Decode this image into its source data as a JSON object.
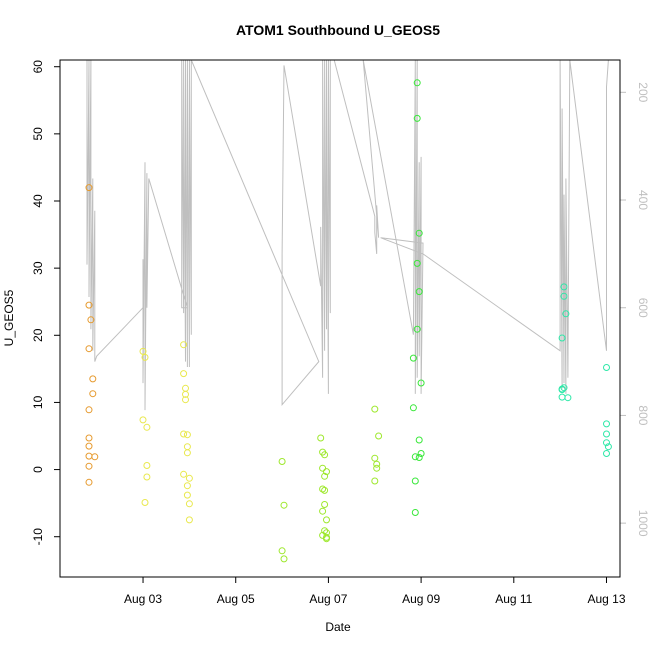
{
  "chart_data": {
    "type": "scatter",
    "title": "ATOM1 Southbound U_GEOS5",
    "xlabel": "Date",
    "ylabel": "U_GEOS5",
    "xlim": [
      "2016-08-01T05:00",
      "2016-08-13T07:00"
    ],
    "ylim": [
      -16,
      61
    ],
    "y2lim": [
      1100,
      140
    ],
    "y2_inverted": true,
    "x_ticks": [
      {
        "label": "Aug 03",
        "date": "2016-08-03"
      },
      {
        "label": "Aug 05",
        "date": "2016-08-05"
      },
      {
        "label": "Aug 07",
        "date": "2016-08-07"
      },
      {
        "label": "Aug 09",
        "date": "2016-08-09"
      },
      {
        "label": "Aug 11",
        "date": "2016-08-11"
      },
      {
        "label": "Aug 13",
        "date": "2016-08-13"
      }
    ],
    "y_ticks": [
      -10,
      0,
      10,
      20,
      30,
      40,
      50,
      60
    ],
    "y2_ticks": [
      200,
      400,
      600,
      800,
      1000
    ],
    "colors": {
      "grey_trace": "#bfbfbf",
      "y2_axis": "#bfbfbf",
      "points": [
        "#e69a2e",
        "#e9e84e",
        "#9ee82d",
        "#39e83a",
        "#2ee8a8"
      ]
    },
    "point_groups": [
      {
        "color": "#e69a2e",
        "points": [
          [
            "2016-08-01T20:00",
            42
          ],
          [
            "2016-08-01T20:00",
            24.5
          ],
          [
            "2016-08-01T21:00",
            22.3
          ],
          [
            "2016-08-01T20:00",
            18
          ],
          [
            "2016-08-01T22:00",
            13.5
          ],
          [
            "2016-08-01T22:00",
            11.3
          ],
          [
            "2016-08-01T20:00",
            8.9
          ],
          [
            "2016-08-01T20:00",
            4.7
          ],
          [
            "2016-08-01T20:00",
            3.5
          ],
          [
            "2016-08-01T20:00",
            2.0
          ],
          [
            "2016-08-01T23:00",
            1.9
          ],
          [
            "2016-08-01T20:00",
            0.5
          ],
          [
            "2016-08-01T20:00",
            -1.9
          ]
        ]
      },
      {
        "color": "#e9e84e",
        "points": [
          [
            "2016-08-03T00:00",
            17.6
          ],
          [
            "2016-08-03T01:00",
            16.7
          ],
          [
            "2016-08-03T00:00",
            7.4
          ],
          [
            "2016-08-03T02:00",
            6.3
          ],
          [
            "2016-08-03T02:00",
            0.6
          ],
          [
            "2016-08-03T02:00",
            -1.1
          ],
          [
            "2016-08-03T01:00",
            -4.9
          ],
          [
            "2016-08-03T21:00",
            18.6
          ],
          [
            "2016-08-03T21:00",
            14.3
          ],
          [
            "2016-08-03T22:00",
            12.1
          ],
          [
            "2016-08-03T22:00",
            11.2
          ],
          [
            "2016-08-03T22:00",
            10.4
          ],
          [
            "2016-08-03T21:00",
            5.3
          ],
          [
            "2016-08-03T23:00",
            5.2
          ],
          [
            "2016-08-03T23:00",
            3.4
          ],
          [
            "2016-08-03T23:00",
            2.5
          ],
          [
            "2016-08-03T21:00",
            -0.7
          ],
          [
            "2016-08-04T00:00",
            -1.3
          ],
          [
            "2016-08-03T23:00",
            -2.4
          ],
          [
            "2016-08-03T23:00",
            -3.8
          ],
          [
            "2016-08-04T00:00",
            -5.1
          ],
          [
            "2016-08-04T00:00",
            -7.5
          ]
        ]
      },
      {
        "color": "#9ee82d",
        "points": [
          [
            "2016-08-06T00:00",
            1.2
          ],
          [
            "2016-08-06T01:00",
            -5.3
          ],
          [
            "2016-08-06T00:00",
            -12.1
          ],
          [
            "2016-08-06T01:00",
            -13.3
          ],
          [
            "2016-08-06T20:00",
            4.7
          ],
          [
            "2016-08-06T21:00",
            2.6
          ],
          [
            "2016-08-06T22:00",
            2.2
          ],
          [
            "2016-08-06T21:00",
            0.2
          ],
          [
            "2016-08-06T23:00",
            -0.3
          ],
          [
            "2016-08-06T22:00",
            -1.0
          ],
          [
            "2016-08-06T21:00",
            -2.9
          ],
          [
            "2016-08-06T22:00",
            -3.1
          ],
          [
            "2016-08-06T22:00",
            -5.2
          ],
          [
            "2016-08-06T21:00",
            -6.2
          ],
          [
            "2016-08-06T23:00",
            -7.5
          ],
          [
            "2016-08-06T22:00",
            -9.1
          ],
          [
            "2016-08-06T23:00",
            -9.4
          ],
          [
            "2016-08-06T21:00",
            -9.8
          ],
          [
            "2016-08-06T23:00",
            -10.1
          ],
          [
            "2016-08-06T23:00",
            -10.3
          ],
          [
            "2016-08-08T00:00",
            9.0
          ],
          [
            "2016-08-08T02:00",
            5.0
          ],
          [
            "2016-08-08T00:00",
            1.7
          ],
          [
            "2016-08-08T01:00",
            0.8
          ],
          [
            "2016-08-08T01:00",
            0.2
          ],
          [
            "2016-08-08T00:00",
            -1.7
          ]
        ]
      },
      {
        "color": "#39e83a",
        "points": [
          [
            "2016-08-08T22:00",
            57.6
          ],
          [
            "2016-08-08T22:00",
            52.3
          ],
          [
            "2016-08-08T23:00",
            35.2
          ],
          [
            "2016-08-08T22:00",
            30.7
          ],
          [
            "2016-08-08T23:00",
            26.5
          ],
          [
            "2016-08-08T22:00",
            20.9
          ],
          [
            "2016-08-08T20:00",
            16.6
          ],
          [
            "2016-08-09T00:00",
            12.9
          ],
          [
            "2016-08-08T20:00",
            9.2
          ],
          [
            "2016-08-08T23:00",
            4.4
          ],
          [
            "2016-08-09T00:00",
            2.4
          ],
          [
            "2016-08-08T21:00",
            1.9
          ],
          [
            "2016-08-08T23:00",
            1.8
          ],
          [
            "2016-08-08T21:00",
            -1.7
          ],
          [
            "2016-08-08T21:00",
            -6.4
          ]
        ]
      },
      {
        "color": "#2ee8a8",
        "points": [
          [
            "2016-08-12T02:00",
            27.2
          ],
          [
            "2016-08-12T02:00",
            25.8
          ],
          [
            "2016-08-12T03:00",
            23.2
          ],
          [
            "2016-08-12T01:00",
            19.6
          ],
          [
            "2016-08-12T02:00",
            12.2
          ],
          [
            "2016-08-12T01:00",
            12.0
          ],
          [
            "2016-08-12T01:00",
            11.9
          ],
          [
            "2016-08-12T01:00",
            10.8
          ],
          [
            "2016-08-12T04:00",
            10.7
          ],
          [
            "2016-08-13T00:00",
            15.2
          ],
          [
            "2016-08-13T00:00",
            6.8
          ],
          [
            "2016-08-13T00:00",
            5.3
          ],
          [
            "2016-08-13T00:00",
            4.0
          ],
          [
            "2016-08-13T01:00",
            3.4
          ],
          [
            "2016-08-13T00:00",
            2.4
          ]
        ]
      }
    ],
    "pressure_trace": {
      "axis": "y2",
      "color": "#bfbfbf",
      "points": [
        [
          "2016-08-01T19:00",
          140
        ],
        [
          "2016-08-01T19:00",
          520
        ],
        [
          "2016-08-01T20:00",
          140
        ],
        [
          "2016-08-01T20:00",
          580
        ],
        [
          "2016-08-01T21:00",
          140
        ],
        [
          "2016-08-01T21:00",
          640
        ],
        [
          "2016-08-01T22:00",
          360
        ],
        [
          "2016-08-01T22:00",
          680
        ],
        [
          "2016-08-01T23:00",
          420
        ],
        [
          "2016-08-01T23:00",
          700
        ],
        [
          "2016-08-02T00:00",
          690
        ],
        [
          "2016-08-03T00:00",
          600
        ],
        [
          "2016-08-03T00:00",
          510
        ],
        [
          "2016-08-03T00:00",
          740
        ],
        [
          "2016-08-03T01:00",
          330
        ],
        [
          "2016-08-03T01:00",
          790
        ],
        [
          "2016-08-03T02:00",
          350
        ],
        [
          "2016-08-03T02:00",
          600
        ],
        [
          "2016-08-03T03:00",
          360
        ],
        [
          "2016-08-03T23:00",
          600
        ],
        [
          "2016-08-03T20:00",
          600
        ],
        [
          "2016-08-03T20:00",
          140
        ],
        [
          "2016-08-03T21:00",
          610
        ],
        [
          "2016-08-03T21:00",
          140
        ],
        [
          "2016-08-03T22:00",
          700
        ],
        [
          "2016-08-03T22:00",
          140
        ],
        [
          "2016-08-03T23:00",
          710
        ],
        [
          "2016-08-03T23:00",
          140
        ],
        [
          "2016-08-04T00:00",
          710
        ],
        [
          "2016-08-04T00:00",
          140
        ],
        [
          "2016-08-04T01:00",
          650
        ],
        [
          "2016-08-04T01:00",
          140
        ],
        [
          "2016-08-06T19:00",
          700
        ],
        [
          "2016-08-06T00:00",
          780
        ],
        [
          "2016-08-06T00:00",
          500
        ],
        [
          "2016-08-06T01:00",
          150
        ],
        [
          "2016-08-06T20:00",
          560
        ],
        [
          "2016-08-06T20:00",
          450
        ],
        [
          "2016-08-06T21:00",
          730
        ],
        [
          "2016-08-06T21:00",
          140
        ],
        [
          "2016-08-06T22:00",
          680
        ],
        [
          "2016-08-06T22:00",
          140
        ],
        [
          "2016-08-06T23:00",
          640
        ],
        [
          "2016-08-06T23:00",
          140
        ],
        [
          "2016-08-07T00:00",
          760
        ],
        [
          "2016-08-07T00:00",
          140
        ],
        [
          "2016-08-07T01:00",
          610
        ],
        [
          "2016-08-07T01:00",
          140
        ],
        [
          "2016-08-07T03:00",
          140
        ],
        [
          "2016-08-08T00:00",
          430
        ],
        [
          "2016-08-08T00:00",
          460
        ],
        [
          "2016-08-08T01:00",
          500
        ],
        [
          "2016-08-08T01:00",
          410
        ],
        [
          "2016-08-08T02:00",
          470
        ],
        [
          "2016-08-07T18:00",
          140
        ],
        [
          "2016-08-08T20:00",
          650
        ],
        [
          "2016-08-08T21:00",
          140
        ],
        [
          "2016-08-08T21:00",
          760
        ],
        [
          "2016-08-08T22:00",
          140
        ],
        [
          "2016-08-08T22:00",
          730
        ],
        [
          "2016-08-08T23:00",
          330
        ],
        [
          "2016-08-08T23:00",
          690
        ],
        [
          "2016-08-09T00:00",
          320
        ],
        [
          "2016-08-09T00:00",
          760
        ],
        [
          "2016-08-09T01:00",
          480
        ],
        [
          "2016-08-08T03:00",
          470
        ],
        [
          "2016-08-09T01:00",
          500
        ],
        [
          "2016-08-12T00:00",
          680
        ],
        [
          "2016-08-12T00:00",
          140
        ],
        [
          "2016-08-12T01:00",
          750
        ],
        [
          "2016-08-12T01:00",
          230
        ],
        [
          "2016-08-12T02:00",
          740
        ],
        [
          "2016-08-12T02:00",
          390
        ],
        [
          "2016-08-12T03:00",
          760
        ],
        [
          "2016-08-12T03:00",
          360
        ],
        [
          "2016-08-12T04:00",
          730
        ],
        [
          "2016-08-12T05:00",
          140
        ],
        [
          "2016-08-13T00:00",
          680
        ],
        [
          "2016-08-13T00:00",
          190
        ],
        [
          "2016-08-13T01:00",
          140
        ]
      ]
    }
  }
}
